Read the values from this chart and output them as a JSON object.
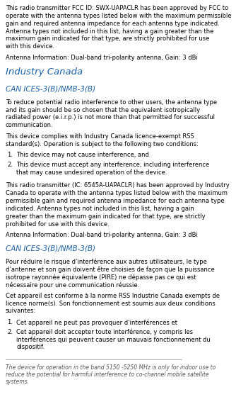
{
  "bg_color": "#ffffff",
  "text_color": "#000000",
  "heading_color": "#1a5fa8",
  "subheading_color": "#1a5fa8",
  "bottom_italic_color": "#555555",
  "font_size_body": 6.0,
  "font_size_heading": 9.5,
  "font_size_subheading": 7.5,
  "font_size_bottom": 5.5,
  "sections": [
    {
      "type": "body",
      "text": "This radio transmitter FCC ID: SWX-UAPACLR has been approved by FCC to operate with the antenna types listed below with the maximum permissible gain and required antenna impedance for each antenna type indicated. Antenna types not included in this list, having a gain greater than the maximum gain indicated for that type, are strictly prohibited for use with this device."
    },
    {
      "type": "body",
      "text": "Antenna Information: Dual-band tri-polarity antenna, Gain: 3 dBi"
    },
    {
      "type": "heading",
      "text": "Industry Canada"
    },
    {
      "type": "subheading",
      "text": "CAN ICES-3(B)/NMB-3(B)"
    },
    {
      "type": "body",
      "text": "To reduce potential radio interference to other users, the antenna type and its gain should be so chosen that the equivalent isotropically radiated power (e.i.r.p.) is not more than that permitted for successful communication."
    },
    {
      "type": "body",
      "text": "This device complies with Industry Canada licence-exempt RSS standard(s). Operation is subject to the following two conditions:"
    },
    {
      "type": "list",
      "items": [
        "This device may not cause interference, and",
        "This device must accept any interference, including interference that may cause undesired operation of the device."
      ]
    },
    {
      "type": "body",
      "text": "This radio transmitter (IC: 6545A-UAPACLR) has been approved by Industry Canada to operate with the antenna types listed below with the maximum permissible gain and required antenna impedance for each antenna type indicated. Antenna types not included in this list, having a gain greater than the maximum gain indicated for that type, are strictly prohibited for use with this device."
    },
    {
      "type": "body",
      "text": "Antenna Information: Dual-band tri-polarity antenna, Gain: 3 dBi"
    },
    {
      "type": "subheading",
      "text": "CAN ICES-3(B)/NMB-3(B)"
    },
    {
      "type": "body",
      "text": "Pour réduire le risque d’interférence aux autres utilisateurs, le type d’antenne et son gain doivent être choisies de façon que la puissance isotrope rayonnée équivalente (PIRE) ne dépasse pas ce qui est nécessaire pour une communication réussie."
    },
    {
      "type": "body",
      "text": "Cet appareil est conforme à la norme RSS Industrie Canada exempts de licence norme(s). Son fonctionnement est soumis aux deux conditions suivantes:"
    },
    {
      "type": "list",
      "items": [
        "Cet appareil ne peut pas provoquer d’interférences et",
        "Cet appareil doit accepter toute interférence, y compris les interférences qui peuvent causer un mauvais fonctionnement du dispositif."
      ]
    },
    {
      "type": "bottom_italic",
      "text": "The device for operation in the band 5150 -5250 MHz is only for indoor use to reduce the potential for harmful interference to co-channel mobile satellite systems."
    }
  ]
}
